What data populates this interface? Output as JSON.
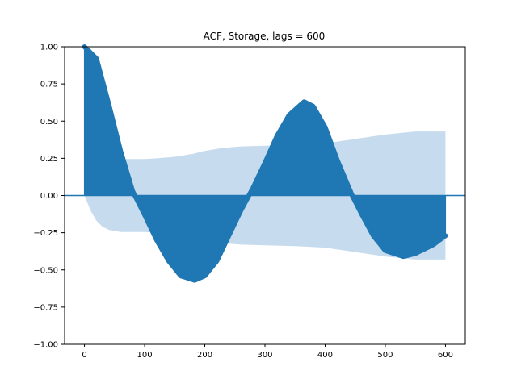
{
  "chart_data": {
    "type": "area",
    "title": "ACF, Storage, lags = 600",
    "xlabel": "",
    "ylabel": "",
    "xlim": [
      -33,
      633
    ],
    "ylim": [
      -1.0,
      1.0
    ],
    "xticks": [
      0,
      100,
      200,
      300,
      400,
      500,
      600
    ],
    "yticks": [
      -1.0,
      -0.75,
      -0.5,
      -0.25,
      0.0,
      0.25,
      0.5,
      0.75,
      1.0
    ],
    "xtick_labels": [
      "0",
      "100",
      "200",
      "300",
      "400",
      "500",
      "600"
    ],
    "ytick_labels": [
      "−1.00",
      "−0.75",
      "−0.50",
      "−0.25",
      "0.00",
      "0.25",
      "0.50",
      "0.75",
      "1.00"
    ],
    "grid": false,
    "acf": {
      "x": [
        0,
        20,
        40,
        60,
        80,
        90,
        100,
        120,
        140,
        160,
        183,
        200,
        220,
        240,
        260,
        280,
        300,
        320,
        340,
        365,
        380,
        400,
        420,
        445,
        460,
        480,
        500,
        530,
        550,
        580,
        600
      ],
      "y": [
        1.0,
        0.92,
        0.62,
        0.3,
        0.03,
        -0.05,
        -0.13,
        -0.3,
        -0.44,
        -0.54,
        -0.57,
        -0.54,
        -0.44,
        -0.27,
        -0.1,
        0.05,
        0.22,
        0.4,
        0.54,
        0.63,
        0.6,
        0.46,
        0.24,
        0.0,
        -0.12,
        -0.27,
        -0.37,
        -0.41,
        -0.39,
        -0.33,
        -0.27
      ]
    },
    "confidence_band": {
      "x": [
        0,
        10,
        20,
        30,
        40,
        60,
        80,
        100,
        120,
        150,
        180,
        200,
        230,
        260,
        300,
        350,
        400,
        450,
        500,
        550,
        600
      ],
      "upper": [
        0.0,
        0.1,
        0.17,
        0.21,
        0.23,
        0.245,
        0.245,
        0.245,
        0.25,
        0.26,
        0.28,
        0.3,
        0.32,
        0.33,
        0.335,
        0.34,
        0.35,
        0.38,
        0.41,
        0.43,
        0.43
      ]
    },
    "colors": {
      "stem": "#1f77b4",
      "band": "#c6dbee",
      "zero_line": "#1f77b4"
    }
  }
}
